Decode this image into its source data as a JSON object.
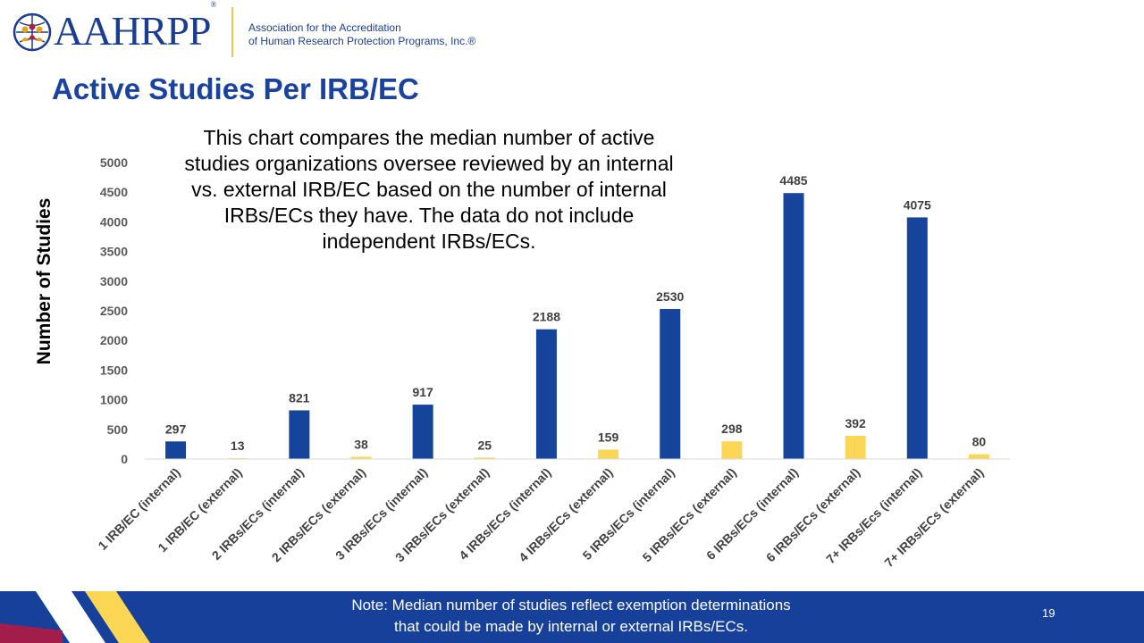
{
  "brand": {
    "logo_text": "AAHRPP",
    "org_line_1": "Association for the Accreditation",
    "org_line_2": "of Human Research Protection Programs, Inc.®"
  },
  "slide": {
    "title": "Active Studies Per IRB/EC",
    "description": "This chart compares the median number of active studies organizations oversee reviewed by an internal vs. external IRB/EC based on the number of internal IRBs/ECs they have. The data do not include independent IRBs/ECs.",
    "note_line_1": "Note: Median number of studies reflect exemption determinations",
    "note_line_2": "that could be made by internal or external IRBs/ECs.",
    "page_number": "19"
  },
  "colors": {
    "internal": "#17449b",
    "external": "#fcd755",
    "title": "#1a43a0",
    "footer": "#16409a"
  },
  "chart_data": {
    "type": "bar",
    "title": "",
    "xlabel": "",
    "ylabel": "Number of Studies",
    "ylim": [
      0,
      5000
    ],
    "yticks": [
      0,
      500,
      1000,
      1500,
      2000,
      2500,
      3000,
      3500,
      4000,
      4500,
      5000
    ],
    "grid": false,
    "categories": [
      "1 IRB/EC (internal)",
      "1 IRB/EC (external)",
      "2 IRBs/ECs (internal)",
      "2 IRBs/ECs (external)",
      "3 IRBs/ECs (internal)",
      "3 IRBs/ECs (external)",
      "4 IRBs/ECs (internal)",
      "4 IRBs/ECs (external)",
      "5 IRBs/ECs (internal)",
      "5 IRBs/ECs (external)",
      "6 IRBs/ECs (internal)",
      "6 IRBs/ECs (external)",
      "7+ IRBs/Ecs (internal)",
      "7+ IRBs/ECs (external)"
    ],
    "values": [
      297,
      13,
      821,
      38,
      917,
      25,
      2188,
      159,
      2530,
      298,
      4485,
      392,
      4075,
      80
    ],
    "bar_colors": [
      "internal",
      "external",
      "internal",
      "external",
      "internal",
      "external",
      "internal",
      "external",
      "internal",
      "external",
      "internal",
      "external",
      "internal",
      "external"
    ]
  }
}
